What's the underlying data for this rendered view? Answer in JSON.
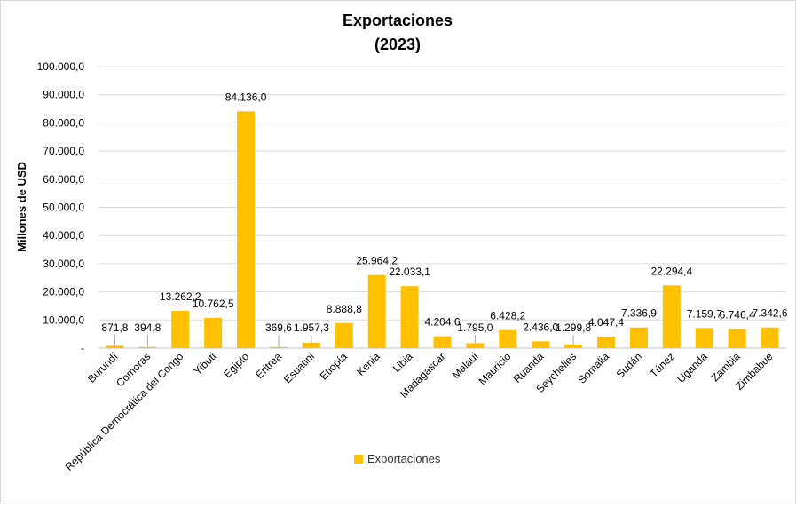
{
  "chart_data": {
    "type": "bar",
    "title": "Exportaciones",
    "subtitle": "(2023)",
    "ylabel": "Millones de USD",
    "xlabel": "",
    "ylim": [
      0,
      100000
    ],
    "yticks": [
      "-",
      "10.000,0",
      "20.000,0",
      "30.000,0",
      "40.000,0",
      "50.000,0",
      "60.000,0",
      "70.000,0",
      "80.000,0",
      "90.000,0",
      "100.000,0"
    ],
    "grid": true,
    "legend_position": "bottom",
    "bar_color": "#FFC000",
    "categories": [
      "Burundí",
      "Comoras",
      "República Democrática del Congo",
      "Yibuti",
      "Egipto",
      "Eritrea",
      "Esuatini",
      "Etiopía",
      "Kenia",
      "Libia",
      "Madagascar",
      "Malaui",
      "Mauricio",
      "Ruanda",
      "Seychelles",
      "Somalia",
      "Sudán",
      "Túnez",
      "Uganda",
      "Zambia",
      "Zimbabue"
    ],
    "series": [
      {
        "name": "Exportaciones",
        "values": [
          871.8,
          394.8,
          13262.2,
          10762.5,
          84136.0,
          369.6,
          1957.3,
          8888.8,
          25964.2,
          22033.1,
          4204.6,
          1795.0,
          6428.2,
          2436.0,
          1299.8,
          4047.4,
          7336.9,
          22294.4,
          7159.7,
          6746.4,
          7342.6
        ],
        "labels": [
          "871,8",
          "394,8",
          "13.262,2",
          "10.762,5",
          "84.136,0",
          "369,6",
          "1.957,3",
          "8.888,8",
          "25.964,2",
          "22.033,1",
          "4.204,6",
          "1.795,0",
          "6.428,2",
          "2.436,0",
          "1.299,8",
          "4.047,4",
          "7.336,9",
          "22.294,4",
          "7.159,7",
          "6.746,4",
          "7.342,6"
        ]
      }
    ]
  }
}
